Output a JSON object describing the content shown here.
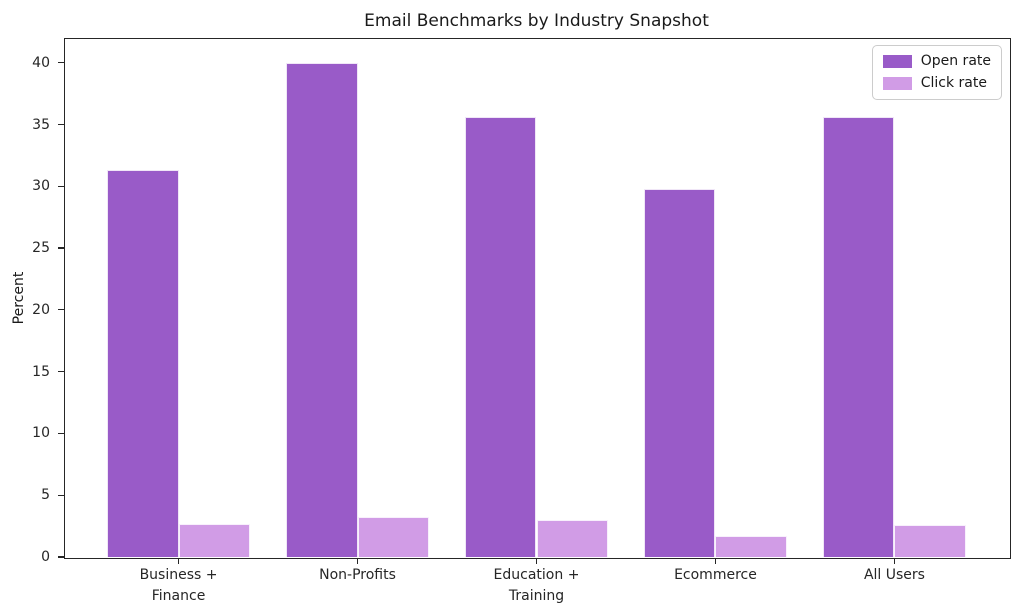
{
  "chart_data": {
    "type": "bar",
    "title": "Email Benchmarks by Industry Snapshot",
    "xlabel": "",
    "ylabel": "Percent",
    "categories": [
      "Business +\nFinance",
      "Non-Profits",
      "Education +\nTraining",
      "Ecommerce",
      "All Users"
    ],
    "series": [
      {
        "name": "Open rate",
        "color": "#995bc8",
        "values": [
          31.3,
          40.0,
          35.6,
          29.8,
          35.6
        ]
      },
      {
        "name": "Click rate",
        "color": "#d19ce6",
        "values": [
          2.7,
          3.2,
          3.0,
          1.7,
          2.6
        ]
      }
    ],
    "ylim": [
      0,
      42
    ],
    "yticks": [
      0,
      5,
      10,
      15,
      20,
      25,
      30,
      35,
      40
    ],
    "grid": false,
    "legend_position": "upper right",
    "colors": {
      "open_rate": "#995bc8",
      "click_rate": "#d19ce6",
      "axis": "#262626",
      "background": "#ffffff"
    }
  }
}
